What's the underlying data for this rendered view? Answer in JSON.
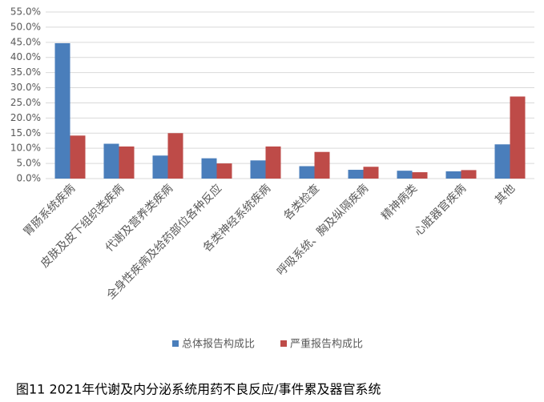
{
  "chart_data": {
    "type": "bar",
    "title": "图11  2021年代谢及内分泌系统用药不良反应/事件累及器官系统",
    "categories": [
      "胃肠系统疾病",
      "皮肤及皮下组织类疾病",
      "代谢及营养类疾病",
      "全身性疾病及给药部位各种反应",
      "各类神经系统疾病",
      "各类检查",
      "呼吸系统、胸及纵隔疾病",
      "精神病类",
      "心脏器官疾病",
      "其他"
    ],
    "series": [
      {
        "name": "总体报告构成比",
        "color": "#4a7ebb",
        "values": [
          44.7,
          11.5,
          7.6,
          6.7,
          6.0,
          4.1,
          2.9,
          2.6,
          2.4,
          11.3
        ]
      },
      {
        "name": "严重报告构成比",
        "color": "#be4b48",
        "values": [
          14.2,
          10.6,
          15.0,
          5.0,
          10.6,
          8.8,
          3.9,
          2.1,
          2.8,
          27.1
        ]
      }
    ],
    "ylim": [
      0,
      55
    ],
    "yticks": [
      {
        "value": 0,
        "label": "0.0%"
      },
      {
        "value": 5,
        "label": "5.0%"
      },
      {
        "value": 10,
        "label": "10.0%"
      },
      {
        "value": 15,
        "label": "15.0%"
      },
      {
        "value": 20,
        "label": "20.0%"
      },
      {
        "value": 25,
        "label": "25.0%"
      },
      {
        "value": 30,
        "label": "30.0%"
      },
      {
        "value": 35,
        "label": "35.0%"
      },
      {
        "value": 40,
        "label": "40.0%"
      },
      {
        "value": 45,
        "label": "45.0%"
      },
      {
        "value": 50,
        "label": "50.0%"
      },
      {
        "value": 55,
        "label": "55.0%"
      }
    ],
    "grid": true,
    "legend": "bottom"
  }
}
